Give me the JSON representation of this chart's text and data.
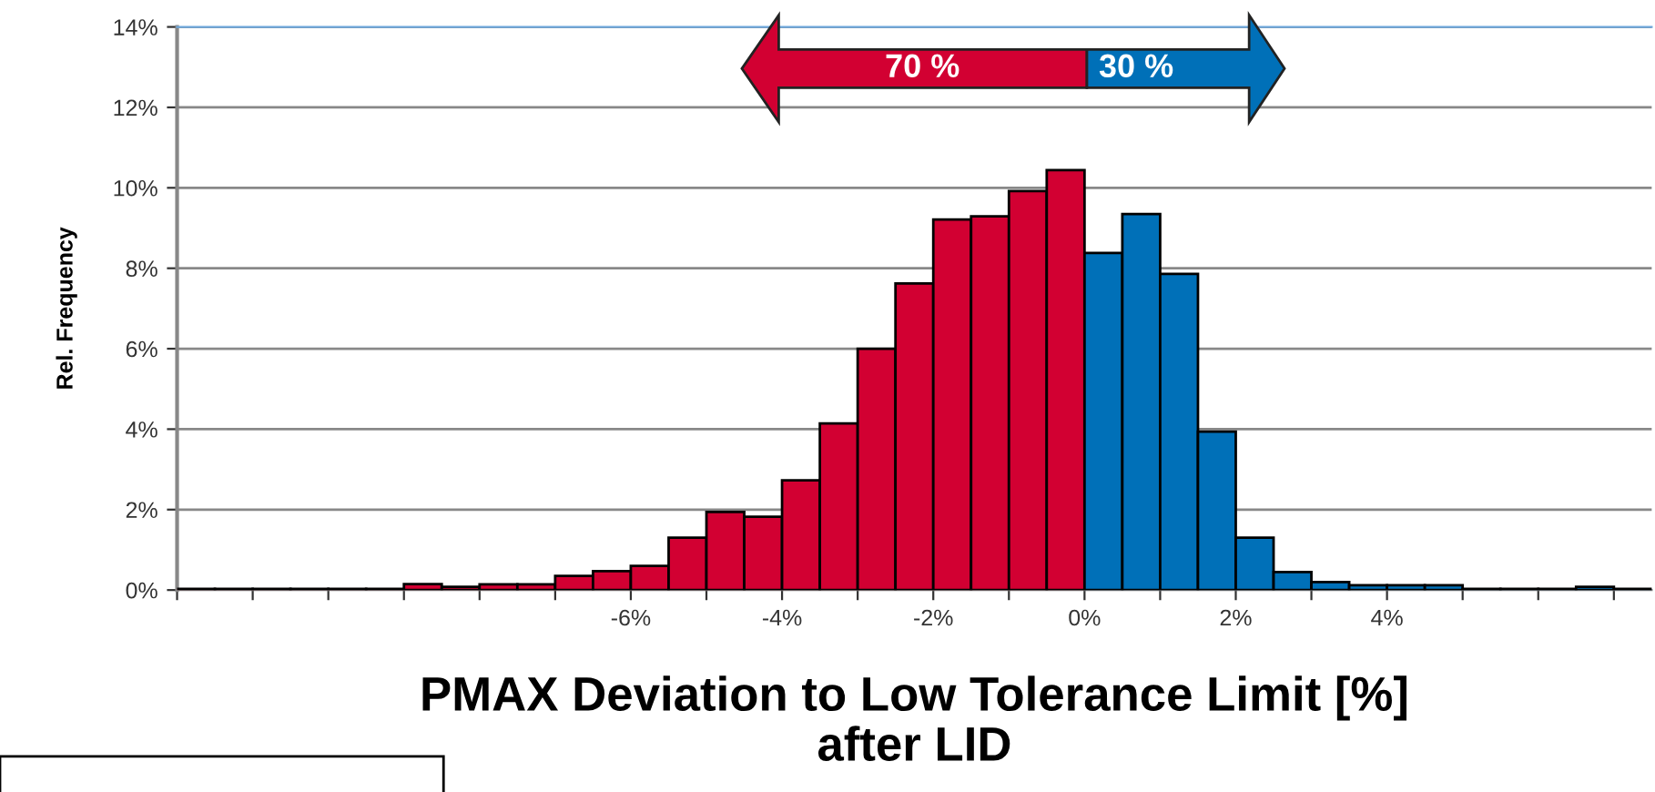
{
  "chart_data": {
    "type": "histogram",
    "xlabel": "PMAX Deviation to Low Tolerance Limit [%]\nafter LID",
    "ylabel": "Rel. Frequency",
    "annotations": [
      "70 %",
      "30 %"
    ],
    "bins": [
      -12,
      -11.5,
      -11,
      -10.5,
      -10,
      -9.5,
      -9,
      -8.5,
      -8,
      -7.5,
      -7,
      -6.5,
      -6,
      -5.5,
      -5,
      -4.5,
      -4,
      -3.5,
      -3,
      -2.5,
      -2,
      -1.5,
      -1,
      -0.5,
      0,
      0.5,
      1,
      1.5,
      2,
      2.5,
      3,
      3.5,
      4,
      4.5,
      5,
      5.5,
      6,
      6.5,
      7,
      7.5
    ],
    "values": [
      0.03,
      0.03,
      0.03,
      0.03,
      0.03,
      0.03,
      0.15,
      0.08,
      0.14,
      0.14,
      0.35,
      0.47,
      0.6,
      1.3,
      1.94,
      1.82,
      2.73,
      4.14,
      6.0,
      7.62,
      9.21,
      9.29,
      9.92,
      10.44,
      8.38,
      9.35,
      7.86,
      3.94,
      1.3,
      0.45,
      0.2,
      0.12,
      0.12,
      0.12,
      0.03,
      0.03,
      0.03,
      0.08,
      0.03
    ],
    "colors": [
      "#d20032",
      "#d20032",
      "#d20032",
      "#d20032",
      "#d20032",
      "#d20032",
      "#d20032",
      "#d20032",
      "#d20032",
      "#d20032",
      "#d20032",
      "#d20032",
      "#d20032",
      "#d20032",
      "#d20032",
      "#d20032",
      "#d20032",
      "#d20032",
      "#d20032",
      "#d20032",
      "#d20032",
      "#d20032",
      "#d20032",
      "#d20032",
      "#0070b8",
      "#0070b8",
      "#0070b8",
      "#0070b8",
      "#0070b8",
      "#0070b8",
      "#0070b8",
      "#0070b8",
      "#0070b8",
      "#0070b8",
      "#0070b8",
      "#0070b8",
      "#0070b8",
      "#0070b8",
      "#0070b8"
    ],
    "xlim": [
      -12,
      7.5
    ],
    "xticks": [
      {
        "value": -12,
        "label": null
      },
      {
        "value": -11,
        "label": null
      },
      {
        "value": -10,
        "label": null
      },
      {
        "value": -9,
        "label": null
      },
      {
        "value": -8,
        "label": null
      },
      {
        "value": -7,
        "label": null
      },
      {
        "value": -6,
        "label": "-6%"
      },
      {
        "value": -5,
        "label": null
      },
      {
        "value": -4,
        "label": "-4%"
      },
      {
        "value": -3,
        "label": null
      },
      {
        "value": -2,
        "label": "-2%"
      },
      {
        "value": -1,
        "label": null
      },
      {
        "value": 0,
        "label": "0%"
      },
      {
        "value": 1,
        "label": null
      },
      {
        "value": 2,
        "label": "2%"
      },
      {
        "value": 3,
        "label": null
      },
      {
        "value": 4,
        "label": "4%"
      },
      {
        "value": 5,
        "label": null
      },
      {
        "value": 6,
        "label": null
      },
      {
        "value": 7,
        "label": null
      }
    ],
    "ylim": [
      0,
      14
    ],
    "yticks": [
      {
        "value": 0,
        "label": "0%"
      },
      {
        "value": 2,
        "label": "2%"
      },
      {
        "value": 4,
        "label": "4%"
      },
      {
        "value": 6,
        "label": "6%"
      },
      {
        "value": 8,
        "label": "8%"
      },
      {
        "value": 10,
        "label": "10%"
      },
      {
        "value": 12,
        "label": "12%"
      },
      {
        "value": 14,
        "label": "14%"
      }
    ],
    "grid": "y"
  }
}
